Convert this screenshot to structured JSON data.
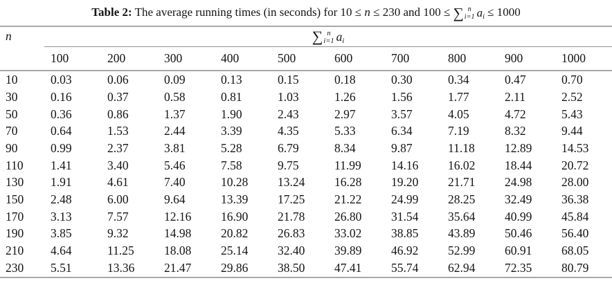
{
  "caption": {
    "label": "Table 2:",
    "seg1": " The average running times (in seconds) for 10 ≤ ",
    "var_n": "n",
    "seg2": " ≤ 230 and 100 ≤ ",
    "seg3": " ≤ 1000"
  },
  "math": {
    "sigma": "∑",
    "sup": "n",
    "sub": "i=1",
    "a": "a",
    "i": "i"
  },
  "colors": {
    "rule_heavy": "#a8a8a8",
    "rule_light": "#909090",
    "text": "#141414",
    "background": "#ffffff"
  },
  "table": {
    "corner_header": "n",
    "column_headers": [
      "100",
      "200",
      "300",
      "400",
      "500",
      "600",
      "700",
      "800",
      "900",
      "1000"
    ],
    "rows": [
      {
        "n": "10",
        "values": [
          "0.03",
          "0.06",
          "0.09",
          "0.13",
          "0.15",
          "0.18",
          "0.30",
          "0.34",
          "0.47",
          "0.70"
        ]
      },
      {
        "n": "30",
        "values": [
          "0.16",
          "0.37",
          "0.58",
          "0.81",
          "1.03",
          "1.26",
          "1.56",
          "1.77",
          "2.11",
          "2.52"
        ]
      },
      {
        "n": "50",
        "values": [
          "0.36",
          "0.86",
          "1.37",
          "1.90",
          "2.43",
          "2.97",
          "3.57",
          "4.05",
          "4.72",
          "5.43"
        ]
      },
      {
        "n": "70",
        "values": [
          "0.64",
          "1.53",
          "2.44",
          "3.39",
          "4.35",
          "5.33",
          "6.34",
          "7.19",
          "8.32",
          "9.44"
        ]
      },
      {
        "n": "90",
        "values": [
          "0.99",
          "2.37",
          "3.81",
          "5.28",
          "6.79",
          "8.34",
          "9.87",
          "11.18",
          "12.89",
          "14.53"
        ]
      },
      {
        "n": "110",
        "values": [
          "1.41",
          "3.40",
          "5.46",
          "7.58",
          "9.75",
          "11.99",
          "14.16",
          "16.02",
          "18.44",
          "20.72"
        ]
      },
      {
        "n": "130",
        "values": [
          "1.91",
          "4.61",
          "7.40",
          "10.28",
          "13.24",
          "16.28",
          "19.20",
          "21.71",
          "24.98",
          "28.00"
        ]
      },
      {
        "n": "150",
        "values": [
          "2.48",
          "6.00",
          "9.64",
          "13.39",
          "17.25",
          "21.22",
          "24.99",
          "28.25",
          "32.49",
          "36.38"
        ]
      },
      {
        "n": "170",
        "values": [
          "3.13",
          "7.57",
          "12.16",
          "16.90",
          "21.78",
          "26.80",
          "31.54",
          "35.64",
          "40.99",
          "45.84"
        ]
      },
      {
        "n": "190",
        "values": [
          "3.85",
          "9.32",
          "14.98",
          "20.82",
          "26.83",
          "33.02",
          "38.85",
          "43.89",
          "50.46",
          "56.40"
        ]
      },
      {
        "n": "210",
        "values": [
          "4.64",
          "11.25",
          "18.08",
          "25.14",
          "32.40",
          "39.89",
          "46.92",
          "52.99",
          "60.91",
          "68.05"
        ]
      },
      {
        "n": "230",
        "values": [
          "5.51",
          "13.36",
          "21.47",
          "29.86",
          "38.50",
          "47.41",
          "55.74",
          "62.94",
          "72.35",
          "80.79"
        ]
      }
    ]
  }
}
